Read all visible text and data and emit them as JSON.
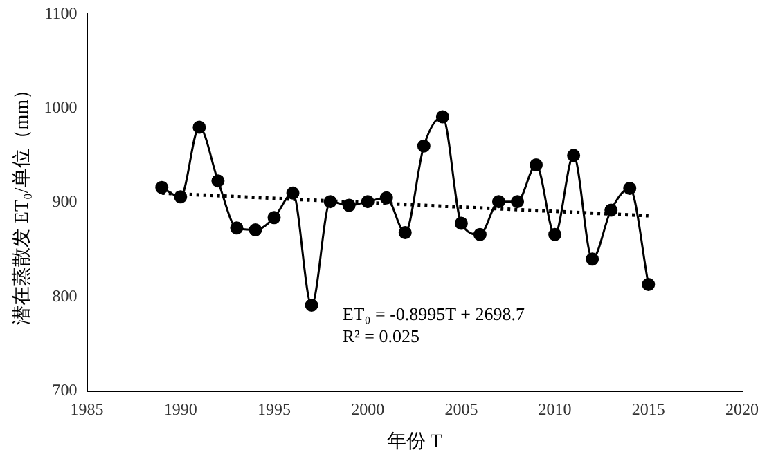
{
  "chart_data": {
    "type": "line",
    "xlabel": "年份 T",
    "ylabel": "潜在蒸散发 ET₀/单位（mm）",
    "x": [
      1989,
      1990,
      1991,
      1992,
      1993,
      1994,
      1995,
      1996,
      1997,
      1998,
      1999,
      2000,
      2001,
      2002,
      2003,
      2004,
      2005,
      2006,
      2007,
      2008,
      2009,
      2010,
      2011,
      2012,
      2013,
      2014,
      2015
    ],
    "series": [
      {
        "color": "#000000",
        "marker": "circle",
        "line_style": "solid",
        "values": [
          916,
          906,
          980,
          923,
          873,
          871,
          884,
          910,
          791,
          901,
          897,
          901,
          905,
          868,
          960,
          991,
          878,
          866,
          901,
          901,
          940,
          866,
          950,
          840,
          892,
          915,
          813
        ]
      },
      {
        "type": "line",
        "color": "#000000",
        "marker": "none",
        "line_style": "dotted",
        "x": [
          1989,
          2015
        ],
        "values": [
          910,
          886
        ]
      }
    ],
    "xlim": [
      1985,
      2020
    ],
    "xticks": [
      1985,
      1990,
      1995,
      2000,
      2005,
      2010,
      2015,
      2020
    ],
    "ylim": [
      700,
      1100
    ],
    "yticks": [
      700,
      800,
      900,
      1000,
      1100
    ],
    "grid": false,
    "legend": false,
    "annotations": [
      "ET₀ = -0.8995T + 2698.7",
      "R² = 0.025"
    ]
  }
}
